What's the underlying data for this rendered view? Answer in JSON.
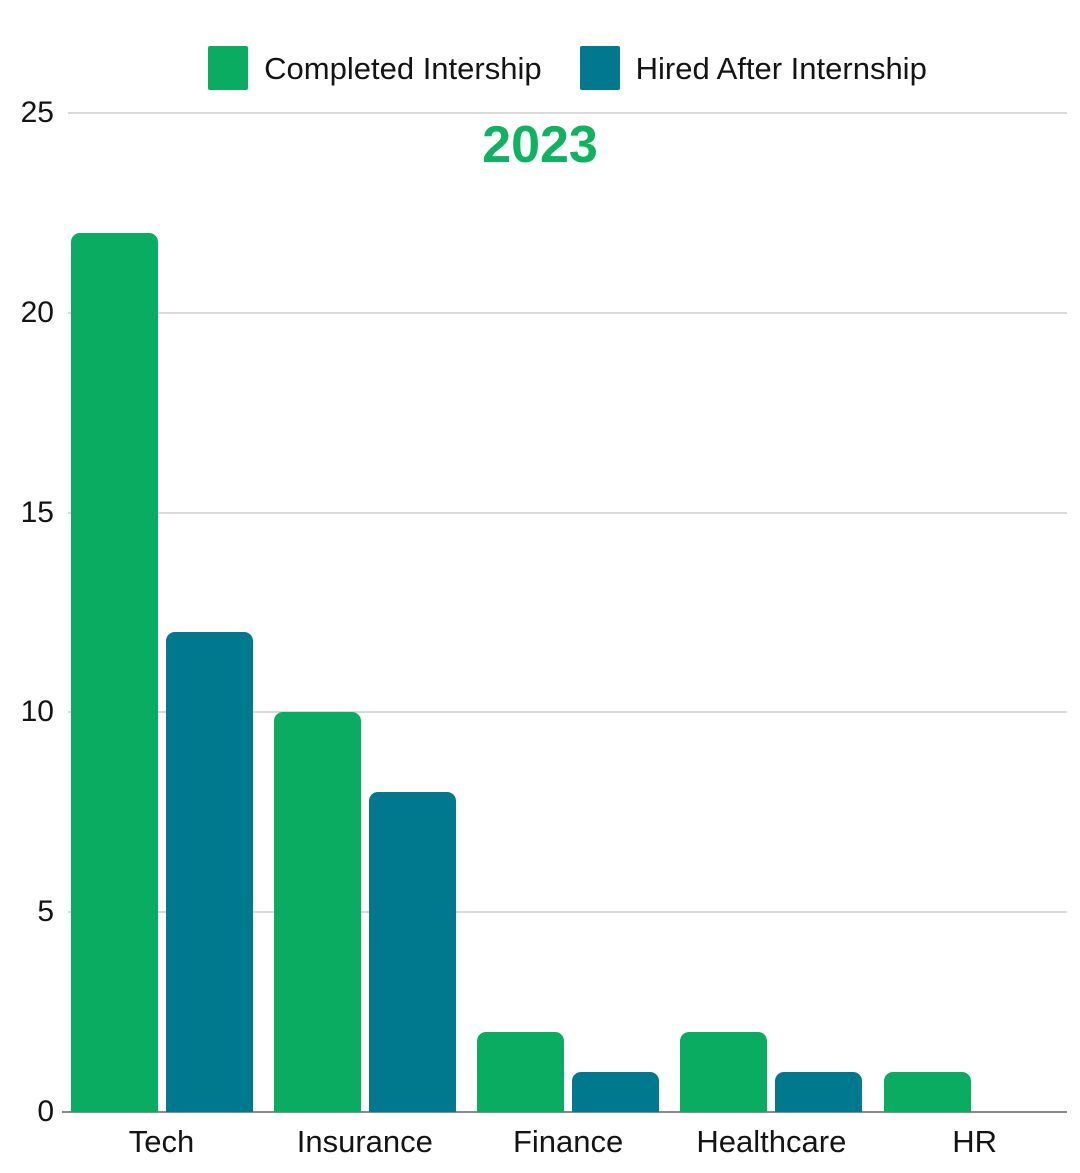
{
  "chart_data": {
    "type": "bar",
    "title": "2023",
    "title_color": "#0fb261",
    "categories": [
      "Tech",
      "Insurance",
      "Finance",
      "Healthcare",
      "HR"
    ],
    "series": [
      {
        "name": "Completed Intership",
        "color": "#0aac62",
        "values": [
          22,
          10,
          2,
          2,
          1
        ]
      },
      {
        "name": "Hired After Internship",
        "color": "#00798e",
        "values": [
          12,
          8,
          1,
          1,
          0
        ]
      }
    ],
    "xlabel": "",
    "ylabel": "",
    "ylim": [
      0,
      25
    ],
    "yticks": [
      0,
      5,
      10,
      15,
      20,
      25
    ],
    "grid": true,
    "legend_position": "top",
    "colors": {
      "gridline": "#d9d9d9",
      "axis_line": "#8a8a8a",
      "text": "#141414",
      "background": "#ffffff"
    }
  }
}
